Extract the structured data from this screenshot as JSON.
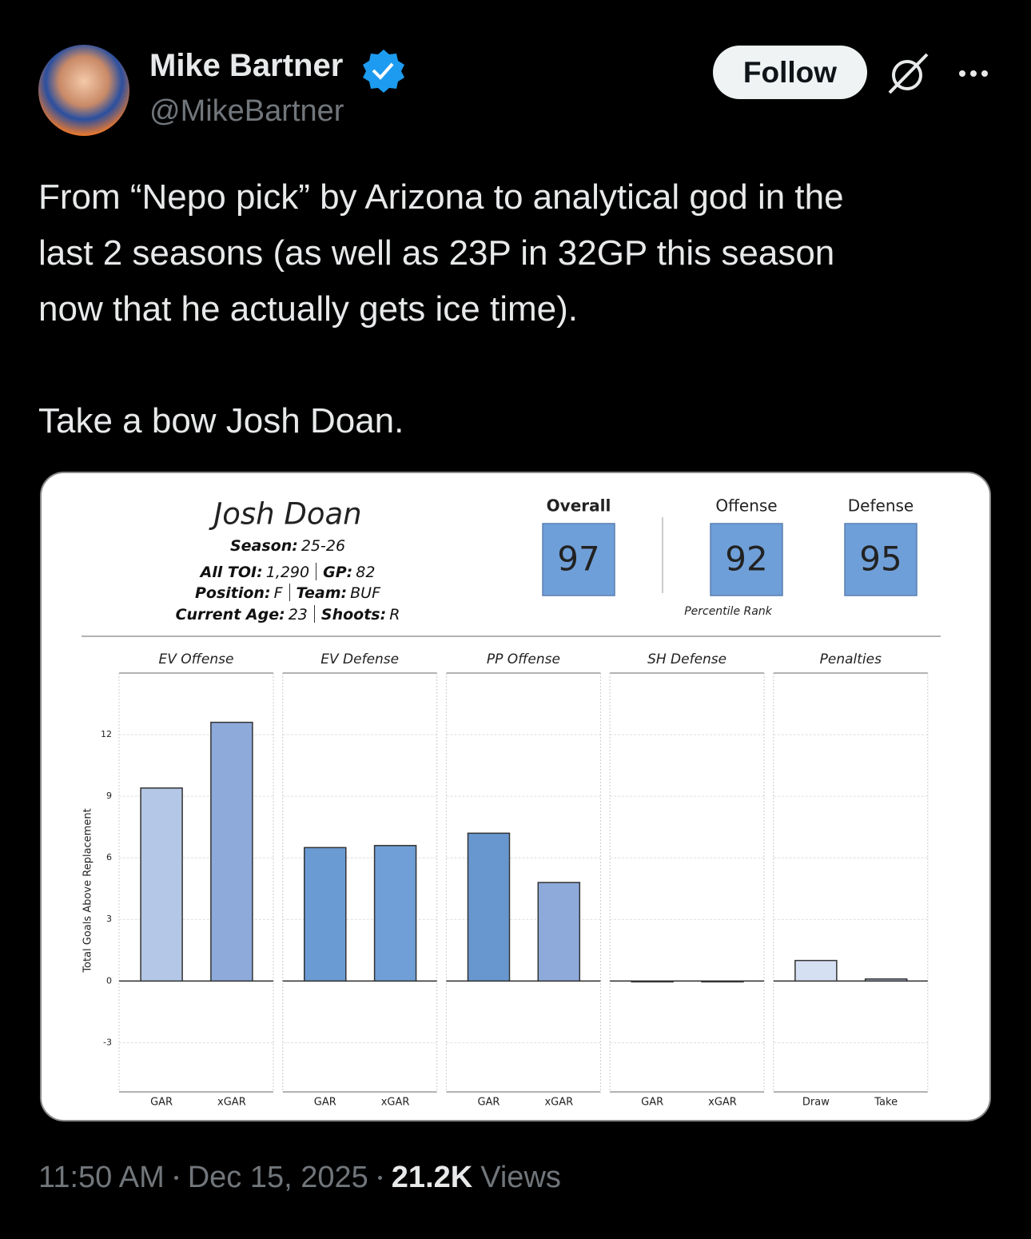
{
  "tweet": {
    "author": "Mike Bartner",
    "handle": "@MikeBartner",
    "follow": "Follow",
    "text": [
      [
        "From “Nepo pick” by Arizona to analytical god in the",
        "last 2 seasons (as well as 23P in 32GP this season",
        "now that he actually gets ice time)."
      ],
      [
        "Take a bow Josh Doan."
      ]
    ],
    "time": "11:50 AM",
    "date": "Dec 15, 2025",
    "views": "21.2K",
    "views_label": "Views"
  },
  "chart_data": {
    "type": "bar",
    "player": {
      "name": "Josh Doan",
      "lines": [
        [
          {
            "label": "Season:",
            "value": "25-26"
          }
        ],
        [
          {
            "label": "All TOI:",
            "value": "1,290"
          },
          {
            "label": "GP:",
            "value": "82"
          }
        ],
        [
          {
            "label": "Position:",
            "value": "F"
          },
          {
            "label": "Team:",
            "value": "BUF"
          }
        ],
        [
          {
            "label": "Current Age:",
            "value": "23"
          },
          {
            "label": "Shoots:",
            "value": "R"
          }
        ]
      ]
    },
    "ratings": [
      {
        "label": "Overall",
        "value": 97
      },
      {
        "label": "Offense",
        "value": 92
      },
      {
        "label": "Defense",
        "value": 95
      }
    ],
    "ratings_note": "Percentile Rank",
    "ylabel": "Total Goals Above Replacement",
    "ylim": [
      -5.4,
      15
    ],
    "yticks": [
      -3,
      0,
      3,
      6,
      9,
      12
    ],
    "grid": true,
    "panels": [
      {
        "title": "EV Offense",
        "categories": [
          "GAR",
          "xGAR"
        ],
        "values": [
          9.4,
          12.6
        ],
        "colors": [
          "#b4c7e7",
          "#8eaadb"
        ]
      },
      {
        "title": "EV Defense",
        "categories": [
          "GAR",
          "xGAR"
        ],
        "values": [
          6.5,
          6.6
        ],
        "colors": [
          "#6a9bd3",
          "#6f9fd6"
        ]
      },
      {
        "title": "PP Offense",
        "categories": [
          "GAR",
          "xGAR"
        ],
        "values": [
          7.2,
          4.8
        ],
        "colors": [
          "#6897d0",
          "#8eaadb"
        ]
      },
      {
        "title": "SH Defense",
        "categories": [
          "GAR",
          "xGAR"
        ],
        "values": [
          0,
          0
        ],
        "colors": [
          "#6897d0",
          "#8eaadb"
        ]
      },
      {
        "title": "Penalties",
        "categories": [
          "Draw",
          "Take"
        ],
        "values": [
          1.0,
          0.1
        ],
        "colors": [
          "#d6e0f3",
          "#a9b8d2"
        ]
      }
    ]
  }
}
